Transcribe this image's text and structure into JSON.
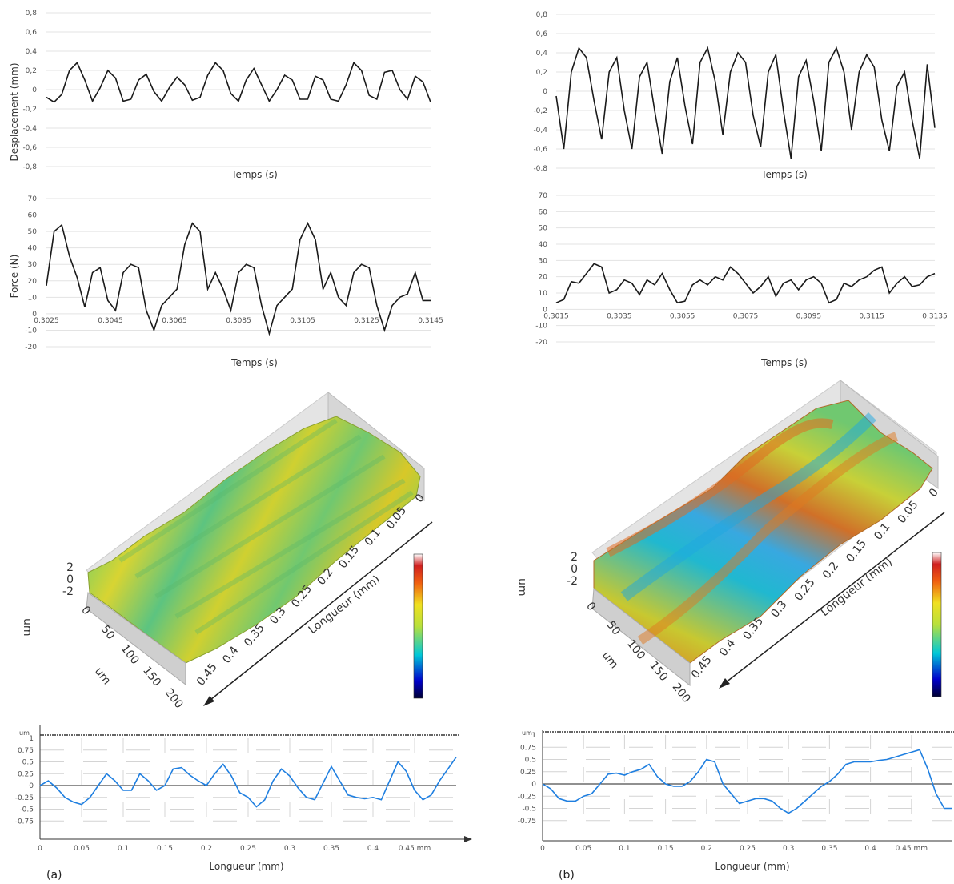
{
  "colors": {
    "trace": "#1a1a1a",
    "grid": "#e3e3e3",
    "profile": "#1f7fe0",
    "surface_mid": "#b8d83a"
  },
  "chart_data": [
    {
      "type": "line",
      "panel": "a-displacement",
      "ylabel": "Desplacement (mm)",
      "xlabel": "Temps (s)",
      "ylim": [
        -0.8,
        0.8
      ],
      "yticks": [
        "0,8",
        "0,6",
        "0,4",
        "0,2",
        "0",
        "-0,2",
        "-0,4",
        "-0,6",
        "-0,8"
      ],
      "x": [
        0,
        0.02,
        0.04,
        0.06,
        0.08,
        0.1,
        0.12,
        0.14,
        0.16,
        0.18,
        0.2,
        0.22,
        0.24,
        0.26,
        0.28,
        0.3,
        0.32,
        0.34,
        0.36,
        0.38,
        0.4,
        0.42,
        0.44,
        0.46,
        0.48,
        0.5,
        0.52,
        0.54,
        0.56,
        0.58,
        0.6,
        0.62,
        0.64,
        0.66,
        0.68,
        0.7,
        0.72,
        0.74,
        0.76,
        0.78,
        0.8,
        0.82,
        0.84,
        0.86,
        0.88,
        0.9,
        0.92,
        0.94,
        0.96,
        0.98,
        1.0
      ],
      "values": [
        -0.08,
        -0.13,
        -0.05,
        0.2,
        0.28,
        0.1,
        -0.12,
        0.02,
        0.2,
        0.12,
        -0.12,
        -0.1,
        0.1,
        0.16,
        -0.02,
        -0.12,
        0.02,
        0.13,
        0.05,
        -0.11,
        -0.08,
        0.15,
        0.28,
        0.2,
        -0.04,
        -0.12,
        0.1,
        0.22,
        0.05,
        -0.12,
        0.0,
        0.15,
        0.1,
        -0.1,
        -0.1,
        0.14,
        0.1,
        -0.1,
        -0.12,
        0.05,
        0.28,
        0.2,
        -0.06,
        -0.1,
        0.18,
        0.2,
        0.0,
        -0.1,
        0.14,
        0.08,
        -0.13
      ]
    },
    {
      "type": "line",
      "panel": "a-force",
      "ylabel": "Force (N)",
      "xlabel": "Temps (s)",
      "ylim": [
        -20,
        70
      ],
      "yticks": [
        "70",
        "60",
        "50",
        "40",
        "30",
        "20",
        "10",
        "0",
        "-10",
        "-20"
      ],
      "xticks": [
        "0,3025",
        "0,3045",
        "0,3065",
        "0,3085",
        "0,3105",
        "0,3125",
        "0,3145"
      ],
      "x": [
        0,
        0.02,
        0.04,
        0.06,
        0.08,
        0.1,
        0.12,
        0.14,
        0.16,
        0.18,
        0.2,
        0.22,
        0.24,
        0.26,
        0.28,
        0.3,
        0.32,
        0.34,
        0.36,
        0.38,
        0.4,
        0.42,
        0.44,
        0.46,
        0.48,
        0.5,
        0.52,
        0.54,
        0.56,
        0.58,
        0.6,
        0.62,
        0.64,
        0.66,
        0.68,
        0.7,
        0.72,
        0.74,
        0.76,
        0.78,
        0.8,
        0.82,
        0.84,
        0.86,
        0.88,
        0.9,
        0.92,
        0.94,
        0.96,
        0.98,
        1.0
      ],
      "values": [
        17,
        50,
        54,
        35,
        22,
        4,
        25,
        28,
        8,
        2,
        25,
        30,
        28,
        2,
        -10,
        5,
        10,
        15,
        42,
        55,
        50,
        15,
        25,
        15,
        2,
        25,
        30,
        28,
        5,
        -12,
        5,
        10,
        15,
        45,
        55,
        45,
        15,
        25,
        10,
        5,
        25,
        30,
        28,
        5,
        -10,
        5,
        10,
        12,
        25,
        8,
        8
      ]
    },
    {
      "type": "line",
      "panel": "b-displacement",
      "xlabel": "Temps (s)",
      "ylim": [
        -0.8,
        0.8
      ],
      "yticks": [
        "0,8",
        "0,6",
        "0,4",
        "0,2",
        "0",
        "-0,2",
        "-0,4",
        "-0,6",
        "-0,8"
      ],
      "x": [
        0,
        0.02,
        0.04,
        0.06,
        0.08,
        0.1,
        0.12,
        0.14,
        0.16,
        0.18,
        0.2,
        0.22,
        0.24,
        0.26,
        0.28,
        0.3,
        0.32,
        0.34,
        0.36,
        0.38,
        0.4,
        0.42,
        0.44,
        0.46,
        0.48,
        0.5,
        0.52,
        0.54,
        0.56,
        0.58,
        0.6,
        0.62,
        0.64,
        0.66,
        0.68,
        0.7,
        0.72,
        0.74,
        0.76,
        0.78,
        0.8,
        0.82,
        0.84,
        0.86,
        0.88,
        0.9,
        0.92,
        0.94,
        0.96,
        0.98,
        1.0
      ],
      "values": [
        -0.05,
        -0.6,
        0.2,
        0.45,
        0.35,
        -0.1,
        -0.5,
        0.2,
        0.35,
        -0.2,
        -0.6,
        0.15,
        0.3,
        -0.2,
        -0.65,
        0.1,
        0.35,
        -0.15,
        -0.55,
        0.3,
        0.45,
        0.1,
        -0.45,
        0.2,
        0.4,
        0.3,
        -0.25,
        -0.58,
        0.2,
        0.38,
        -0.2,
        -0.7,
        0.15,
        0.32,
        -0.1,
        -0.62,
        0.3,
        0.45,
        0.2,
        -0.4,
        0.2,
        0.38,
        0.25,
        -0.3,
        -0.62,
        0.05,
        0.2,
        -0.3,
        -0.7,
        0.28,
        -0.38
      ]
    },
    {
      "type": "line",
      "panel": "b-force",
      "xlabel": "Temps (s)",
      "ylim": [
        -20,
        70
      ],
      "yticks": [
        "70",
        "60",
        "50",
        "40",
        "30",
        "20",
        "10",
        "0",
        "-10",
        "-20"
      ],
      "xticks": [
        "0,3015",
        "0,3035",
        "0,3055",
        "0,3075",
        "0,3095",
        "0,3115",
        "0,3135"
      ],
      "x": [
        0,
        0.02,
        0.04,
        0.06,
        0.08,
        0.1,
        0.12,
        0.14,
        0.16,
        0.18,
        0.2,
        0.22,
        0.24,
        0.26,
        0.28,
        0.3,
        0.32,
        0.34,
        0.36,
        0.38,
        0.4,
        0.42,
        0.44,
        0.46,
        0.48,
        0.5,
        0.52,
        0.54,
        0.56,
        0.58,
        0.6,
        0.62,
        0.64,
        0.66,
        0.68,
        0.7,
        0.72,
        0.74,
        0.76,
        0.78,
        0.8,
        0.82,
        0.84,
        0.86,
        0.88,
        0.9,
        0.92,
        0.94,
        0.96,
        0.98,
        1.0
      ],
      "values": [
        4,
        6,
        17,
        16,
        22,
        28,
        26,
        10,
        12,
        18,
        16,
        9,
        18,
        15,
        22,
        12,
        4,
        5,
        15,
        18,
        15,
        20,
        18,
        26,
        22,
        16,
        10,
        14,
        20,
        8,
        16,
        18,
        12,
        18,
        20,
        16,
        4,
        6,
        16,
        14,
        18,
        20,
        24,
        26,
        10,
        16,
        20,
        14,
        15,
        20,
        22
      ]
    },
    {
      "type": "line",
      "panel": "a-profile",
      "ylabel": "um",
      "xlabel": "Longueur (mm)",
      "xlim": [
        0,
        0.5
      ],
      "ylim": [
        -1,
        1
      ],
      "yticks": [
        "1",
        "0.75",
        "0.5",
        "0.25",
        "0",
        "-0.25",
        "-0.5",
        "-0.75"
      ],
      "xticks": [
        "0",
        "0.05",
        "0.1",
        "0.15",
        "0.2",
        "0.25",
        "0.3",
        "0.35",
        "0.4",
        "0.45 mm"
      ],
      "x": [
        0,
        0.01,
        0.02,
        0.03,
        0.04,
        0.05,
        0.06,
        0.07,
        0.08,
        0.09,
        0.1,
        0.11,
        0.12,
        0.13,
        0.14,
        0.15,
        0.16,
        0.17,
        0.18,
        0.19,
        0.2,
        0.21,
        0.22,
        0.23,
        0.24,
        0.25,
        0.26,
        0.27,
        0.28,
        0.29,
        0.3,
        0.31,
        0.32,
        0.33,
        0.34,
        0.35,
        0.36,
        0.37,
        0.38,
        0.39,
        0.4,
        0.41,
        0.42,
        0.43,
        0.44,
        0.45,
        0.46,
        0.47,
        0.48,
        0.49,
        0.5
      ],
      "values": [
        0.0,
        0.1,
        -0.05,
        -0.25,
        -0.35,
        -0.4,
        -0.25,
        0.0,
        0.25,
        0.1,
        -0.1,
        -0.1,
        0.25,
        0.1,
        -0.1,
        0.0,
        0.35,
        0.38,
        0.22,
        0.1,
        0.0,
        0.25,
        0.45,
        0.2,
        -0.15,
        -0.25,
        -0.45,
        -0.3,
        0.1,
        0.35,
        0.2,
        -0.05,
        -0.25,
        -0.3,
        0.05,
        0.4,
        0.1,
        -0.2,
        -0.25,
        -0.28,
        -0.25,
        -0.3,
        0.1,
        0.5,
        0.3,
        -0.1,
        -0.3,
        -0.2,
        0.1,
        0.35,
        0.6
      ]
    },
    {
      "type": "line",
      "panel": "b-profile",
      "ylabel": "um",
      "xlabel": "Longueur (mm)",
      "xlim": [
        0,
        0.5
      ],
      "ylim": [
        -1,
        1
      ],
      "yticks": [
        "1",
        "0.75",
        "0.5",
        "0.25",
        "0",
        "-0.25",
        "-0.5",
        "-0.75"
      ],
      "xticks": [
        "0",
        "0.05",
        "0.1",
        "0.15",
        "0.2",
        "0.25",
        "0.3",
        "0.35",
        "0.4",
        "0.45 mm"
      ],
      "x": [
        0,
        0.01,
        0.02,
        0.03,
        0.04,
        0.05,
        0.06,
        0.07,
        0.08,
        0.09,
        0.1,
        0.11,
        0.12,
        0.13,
        0.14,
        0.15,
        0.16,
        0.17,
        0.18,
        0.19,
        0.2,
        0.21,
        0.22,
        0.23,
        0.24,
        0.25,
        0.26,
        0.27,
        0.28,
        0.29,
        0.3,
        0.31,
        0.32,
        0.33,
        0.34,
        0.35,
        0.36,
        0.37,
        0.38,
        0.39,
        0.4,
        0.41,
        0.42,
        0.43,
        0.44,
        0.45,
        0.46,
        0.47,
        0.48,
        0.49,
        0.5
      ],
      "values": [
        0.0,
        -0.1,
        -0.3,
        -0.35,
        -0.35,
        -0.25,
        -0.2,
        0.0,
        0.2,
        0.22,
        0.18,
        0.25,
        0.3,
        0.4,
        0.15,
        0.0,
        -0.05,
        -0.05,
        0.05,
        0.25,
        0.5,
        0.45,
        0.0,
        -0.2,
        -0.4,
        -0.35,
        -0.3,
        -0.3,
        -0.35,
        -0.5,
        -0.6,
        -0.5,
        -0.35,
        -0.2,
        -0.05,
        0.05,
        0.2,
        0.4,
        0.45,
        0.45,
        0.45,
        0.48,
        0.5,
        0.55,
        0.6,
        0.65,
        0.7,
        0.3,
        -0.2,
        -0.5,
        -0.5
      ]
    }
  ],
  "surface3d": [
    {
      "panel": "a-surface",
      "z_axis_label": "um",
      "z_ticks": [
        "2",
        "0",
        "-2"
      ],
      "length_axis_label": "Longueur (mm)",
      "length_ticks": [
        "0",
        "0.05",
        "0.1",
        "0.15",
        "0.2",
        "0.25",
        "0.3",
        "0.35",
        "0.4",
        "0.45"
      ],
      "width_axis_label": "um",
      "width_ticks": [
        "0",
        "50",
        "100",
        "150",
        "200"
      ]
    },
    {
      "panel": "b-surface",
      "z_axis_label": "um",
      "z_ticks": [
        "2",
        "0",
        "-2"
      ],
      "length_axis_label": "Longueur (mm)",
      "length_ticks": [
        "0",
        "0.05",
        "0.1",
        "0.15",
        "0.2",
        "0.25",
        "0.3",
        "0.35",
        "0.4",
        "0.45"
      ],
      "width_axis_label": "um",
      "width_ticks": [
        "0",
        "50",
        "100",
        "150",
        "200"
      ]
    }
  ],
  "panel_labels": [
    "(a)",
    "(b)"
  ]
}
